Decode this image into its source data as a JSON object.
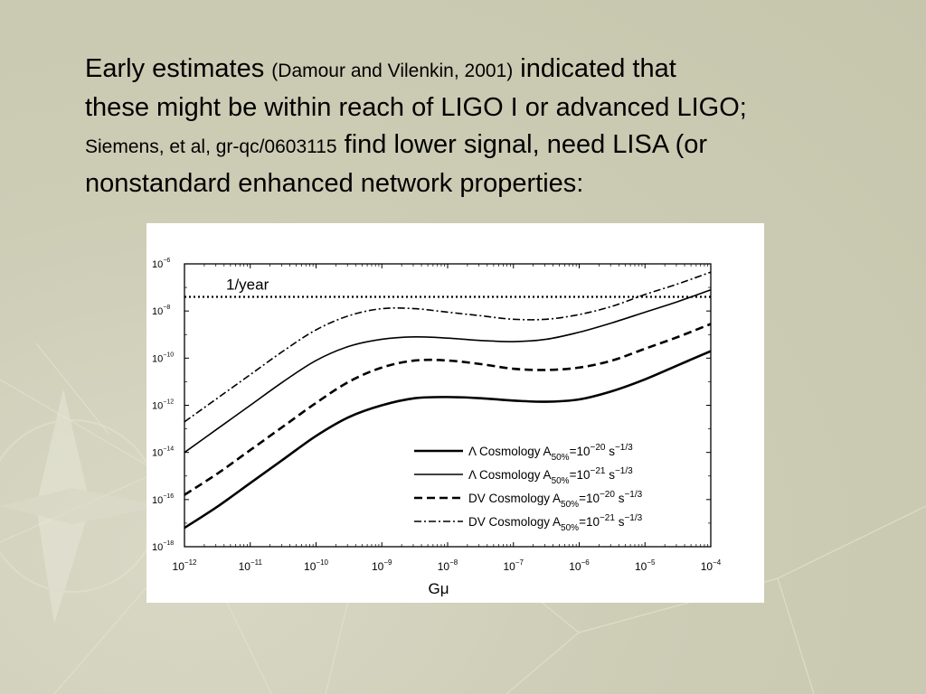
{
  "slide": {
    "line1_a": "Early estimates ",
    "line1_ref": "(Damour and Vilenkin, 2001)",
    "line1_b": " indicated that",
    "line2": "these might be within reach of LIGO I or advanced LIGO;",
    "line3_ref": "Siemens, et al, gr-qc/0603115",
    "line3_b": " find lower signal, need LISA (or",
    "line4": "nonstandard enhanced network properties:"
  },
  "colors": {
    "background": "#cdcdb6",
    "text": "#000000",
    "plot_bg": "#ffffff"
  },
  "chart_data": {
    "type": "line",
    "xscale": "log",
    "yscale": "log",
    "xlim_exp": [
      -12,
      -4
    ],
    "ylim_exp": [
      -18,
      -6
    ],
    "xlabel": "Gμ",
    "ylabel": "",
    "xticks": [
      {
        "base": "10",
        "exp": "−12"
      },
      {
        "base": "10",
        "exp": "−11"
      },
      {
        "base": "10",
        "exp": "−10"
      },
      {
        "base": "10",
        "exp": "−9"
      },
      {
        "base": "10",
        "exp": "−8"
      },
      {
        "base": "10",
        "exp": "−7"
      },
      {
        "base": "10",
        "exp": "−6"
      },
      {
        "base": "10",
        "exp": "−5"
      },
      {
        "base": "10",
        "exp": "−4"
      }
    ],
    "yticks": [
      {
        "base": "10",
        "exp": "−18"
      },
      {
        "base": "10",
        "exp": "−16"
      },
      {
        "base": "10",
        "exp": "−14"
      },
      {
        "base": "10",
        "exp": "−12"
      },
      {
        "base": "10",
        "exp": "−10"
      },
      {
        "base": "10",
        "exp": "−8"
      },
      {
        "base": "10",
        "exp": "−6"
      }
    ],
    "annotation": "1/year",
    "reference_line_log10": -7.4,
    "legend_placement": "bottom-right",
    "x_log10": [
      -12,
      -11.5,
      -11,
      -10.5,
      -10,
      -9.5,
      -9,
      -8.5,
      -8,
      -7.5,
      -7,
      -6.5,
      -6,
      -5.5,
      -5,
      -4.5,
      -4
    ],
    "series": [
      {
        "name": "Λ Cosmology A50%=10^−20 s^−1/3",
        "legend": {
          "pre": "Λ  Cosmology  A",
          "sub": "50%",
          "mid": "=10",
          "sup1": "−20",
          "post": " s",
          "sup2": "−1/3"
        },
        "style": "solid-thick",
        "y_log10": [
          -17.2,
          -16.3,
          -15.3,
          -14.3,
          -13.3,
          -12.5,
          -12.0,
          -11.7,
          -11.65,
          -11.7,
          -11.8,
          -11.85,
          -11.75,
          -11.4,
          -10.9,
          -10.3,
          -9.7
        ]
      },
      {
        "name": "Λ Cosmology A50%=10^−21 s^−1/3",
        "legend": {
          "pre": "Λ  Cosmology  A",
          "sub": "50%",
          "mid": "=10",
          "sup1": "−21",
          "post": " s",
          "sup2": "−1/3"
        },
        "style": "solid-thin",
        "y_log10": [
          -14.0,
          -13.0,
          -12.0,
          -11.0,
          -10.1,
          -9.5,
          -9.2,
          -9.1,
          -9.15,
          -9.25,
          -9.3,
          -9.2,
          -8.9,
          -8.5,
          -8.05,
          -7.6,
          -7.1
        ]
      },
      {
        "name": "DV Cosmology A50%=10^−20 s^−1/3",
        "legend": {
          "pre": "DV Cosmology A",
          "sub": "50%",
          "mid": "=10",
          "sup1": "−20",
          "post": " s",
          "sup2": "−1/3"
        },
        "style": "dashed",
        "y_log10": [
          -15.8,
          -14.9,
          -13.9,
          -12.9,
          -11.9,
          -11.0,
          -10.4,
          -10.1,
          -10.1,
          -10.25,
          -10.45,
          -10.5,
          -10.4,
          -10.1,
          -9.6,
          -9.1,
          -8.55
        ]
      },
      {
        "name": "DV Cosmology A50%=10^−21 s^−1/3",
        "legend": {
          "pre": "DV Cosmology A",
          "sub": "50%",
          "mid": "=10",
          "sup1": "−21",
          "post": " s",
          "sup2": "−1/3"
        },
        "style": "dashdot",
        "y_log10": [
          -12.7,
          -11.7,
          -10.7,
          -9.7,
          -8.8,
          -8.2,
          -7.9,
          -7.9,
          -8.05,
          -8.2,
          -8.35,
          -8.35,
          -8.15,
          -7.8,
          -7.3,
          -6.85,
          -6.35
        ]
      }
    ]
  }
}
